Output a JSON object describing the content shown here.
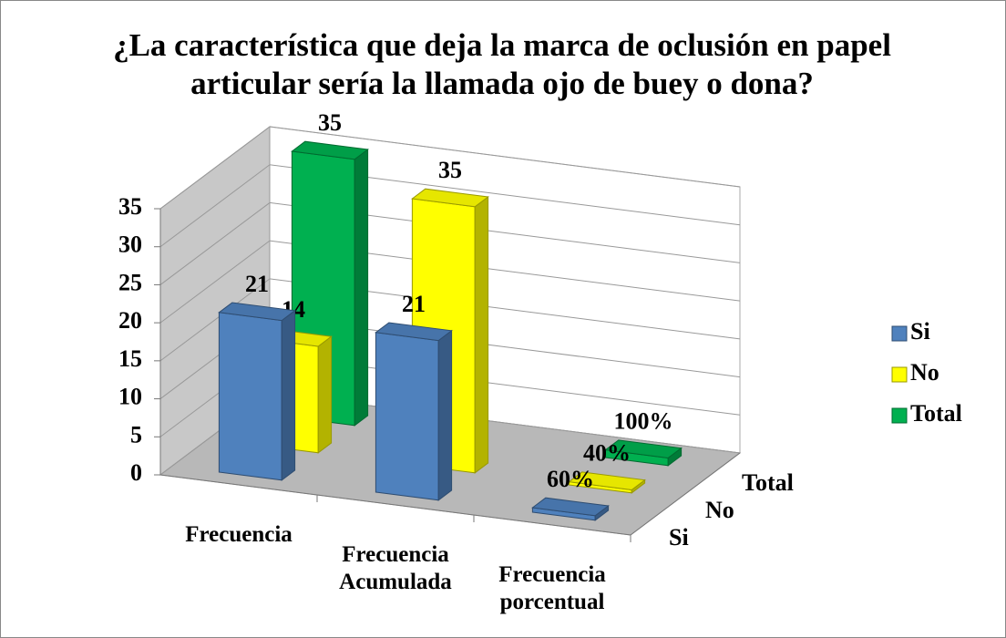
{
  "chart_data": {
    "type": "bar3d",
    "title": "¿La característica que deja la marca de oclusión en papel articular sería la llamada ojo de buey o dona?",
    "categories": [
      "Frecuencia",
      "Frecuencia Acumulada",
      "Frecuencia porcentual"
    ],
    "series": [
      {
        "name": "Si",
        "color": "#4f81bd",
        "values": [
          21,
          21,
          0.6
        ],
        "value_labels": [
          "21",
          "21",
          "60%"
        ]
      },
      {
        "name": "No",
        "color": "#ffff00",
        "values": [
          14,
          35,
          0.4
        ],
        "value_labels": [
          "14",
          "35",
          "40%"
        ]
      },
      {
        "name": "Total",
        "color": "#00b050",
        "values": [
          35,
          null,
          1
        ],
        "value_labels": [
          "35",
          null,
          "100%"
        ]
      }
    ],
    "ylim": [
      0,
      35
    ],
    "yticks": [
      0,
      5,
      10,
      15,
      20,
      25,
      30,
      35
    ],
    "grid": true,
    "legend": "right"
  }
}
